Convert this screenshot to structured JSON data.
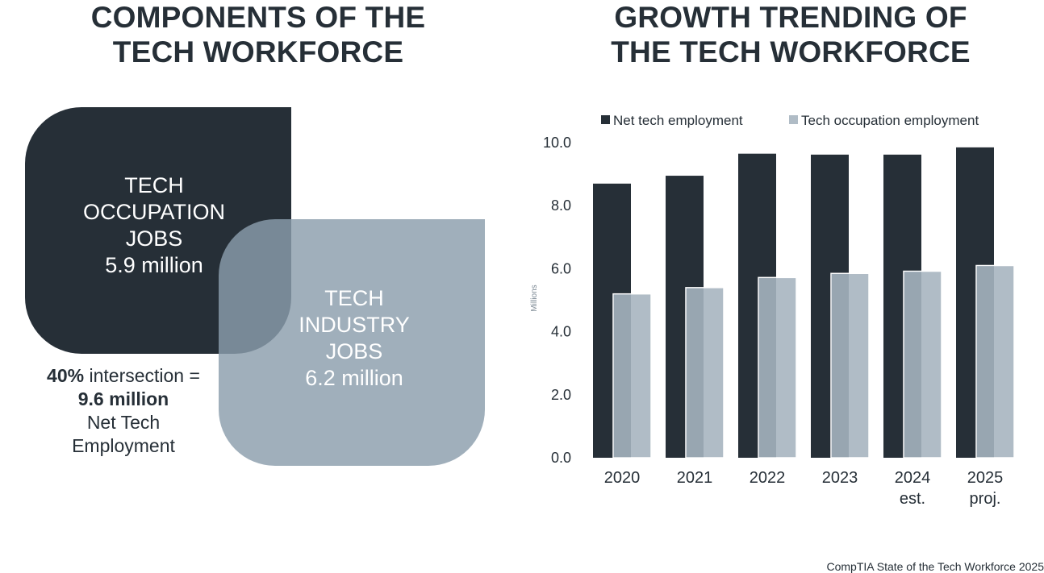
{
  "left_heading": {
    "line1": "COMPONENTS OF THE",
    "line2": "TECH WORKFORCE"
  },
  "right_heading": {
    "line1": "GROWTH TRENDING OF",
    "line2": "THE TECH WORKFORCE"
  },
  "venn": {
    "occupation": {
      "lines": [
        "TECH",
        "OCCUPATION",
        "JOBS"
      ],
      "value": "5.9 million"
    },
    "industry": {
      "lines": [
        "TECH",
        "INDUSTRY",
        "JOBS"
      ],
      "value": "6.2 million"
    },
    "intersection": {
      "percent": "40%",
      "label": "intersection =",
      "value": "9.6 million",
      "line3": "Net Tech",
      "line4": "Employment"
    }
  },
  "colors": {
    "dark": "#262f37",
    "light": "#b0bcc6",
    "overlap": "#5f707c",
    "industry": "#a0afbc"
  },
  "chart_data": {
    "type": "bar",
    "categories": [
      "2020",
      "2021",
      "2022",
      "2023",
      "2024 est.",
      "2025 proj."
    ],
    "category_lines": [
      [
        "2020"
      ],
      [
        "2021"
      ],
      [
        "2022"
      ],
      [
        "2023"
      ],
      [
        "2024",
        "est."
      ],
      [
        "2025",
        "proj."
      ]
    ],
    "series": [
      {
        "name": "Net tech employment",
        "values": [
          8.7,
          8.95,
          9.65,
          9.62,
          9.62,
          9.85
        ]
      },
      {
        "name": "Tech occupation employment",
        "values": [
          5.2,
          5.4,
          5.72,
          5.85,
          5.92,
          6.1
        ]
      }
    ],
    "ylabel": "Millions",
    "ylim": [
      0,
      10
    ],
    "yticks": [
      "0.0",
      "2.0",
      "4.0",
      "6.0",
      "8.0",
      "10.0"
    ],
    "legend_position": "top",
    "grid": false
  },
  "source": "CompTIA State of the Tech Workforce 2025"
}
